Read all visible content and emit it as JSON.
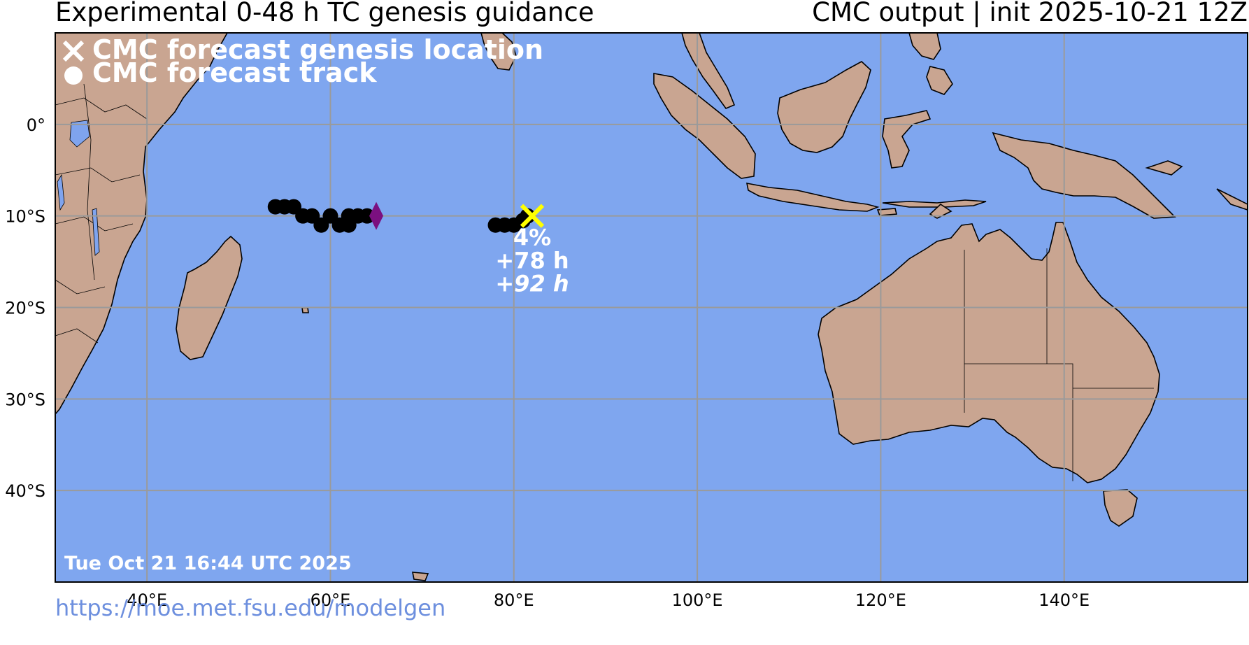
{
  "header": {
    "title_left": "Experimental 0-48 h TC genesis guidance",
    "title_right": "CMC output | init 2025-10-21 12Z"
  },
  "footer": {
    "url": "https://moe.met.fsu.edu/modelgen"
  },
  "map": {
    "projection": "plate-carree",
    "lon_range": [
      30,
      160
    ],
    "lat_range": [
      -50,
      10
    ],
    "gridlines": true,
    "ocean_color": "#7fa6ef",
    "land_color": "#c9a591",
    "lon_ticks": [
      {
        "value": 40,
        "label": "40°E"
      },
      {
        "value": 60,
        "label": "60°E"
      },
      {
        "value": 80,
        "label": "80°E"
      },
      {
        "value": 100,
        "label": "100°E"
      },
      {
        "value": 120,
        "label": "120°E"
      },
      {
        "value": 140,
        "label": "140°E"
      }
    ],
    "lat_ticks": [
      {
        "value": 0,
        "label": "0°"
      },
      {
        "value": -10,
        "label": "10°S"
      },
      {
        "value": -20,
        "label": "20°S"
      },
      {
        "value": -30,
        "label": "30°S"
      },
      {
        "value": -40,
        "label": "40°S"
      }
    ],
    "legend": {
      "genesis_label": "CMC forecast genesis location",
      "track_label": "CMC forecast track",
      "color": "#ffffff"
    },
    "timestamp": "Tue Oct 21 16:44 UTC 2025",
    "tracks": [
      {
        "color": "#000000",
        "end_marker_color": "#7b1080",
        "end": {
          "lon": 65.0,
          "lat": -10.0
        },
        "points": [
          {
            "lon": 54.0,
            "lat": -9.0
          },
          {
            "lon": 55.0,
            "lat": -9.0
          },
          {
            "lon": 56.0,
            "lat": -9.0
          },
          {
            "lon": 57.0,
            "lat": -10.0
          },
          {
            "lon": 58.0,
            "lat": -10.0
          },
          {
            "lon": 59.0,
            "lat": -11.0
          },
          {
            "lon": 60.0,
            "lat": -10.0
          },
          {
            "lon": 61.0,
            "lat": -11.0
          },
          {
            "lon": 62.0,
            "lat": -11.0
          },
          {
            "lon": 62.0,
            "lat": -10.0
          },
          {
            "lon": 63.0,
            "lat": -10.0
          },
          {
            "lon": 64.0,
            "lat": -10.0
          }
        ]
      },
      {
        "color": "#000000",
        "points": [
          {
            "lon": 78.0,
            "lat": -11.0
          },
          {
            "lon": 79.0,
            "lat": -11.0
          },
          {
            "lon": 80.0,
            "lat": -11.0
          },
          {
            "lon": 81.0,
            "lat": -10.5
          },
          {
            "lon": 81.5,
            "lat": -10.0
          }
        ]
      }
    ],
    "genesis": [
      {
        "lon": 82.0,
        "lat": -10.0,
        "color": "#ffff00",
        "probability": "4%",
        "lead_time": "+78 h",
        "lead_time_italic": "+92 h"
      }
    ]
  }
}
